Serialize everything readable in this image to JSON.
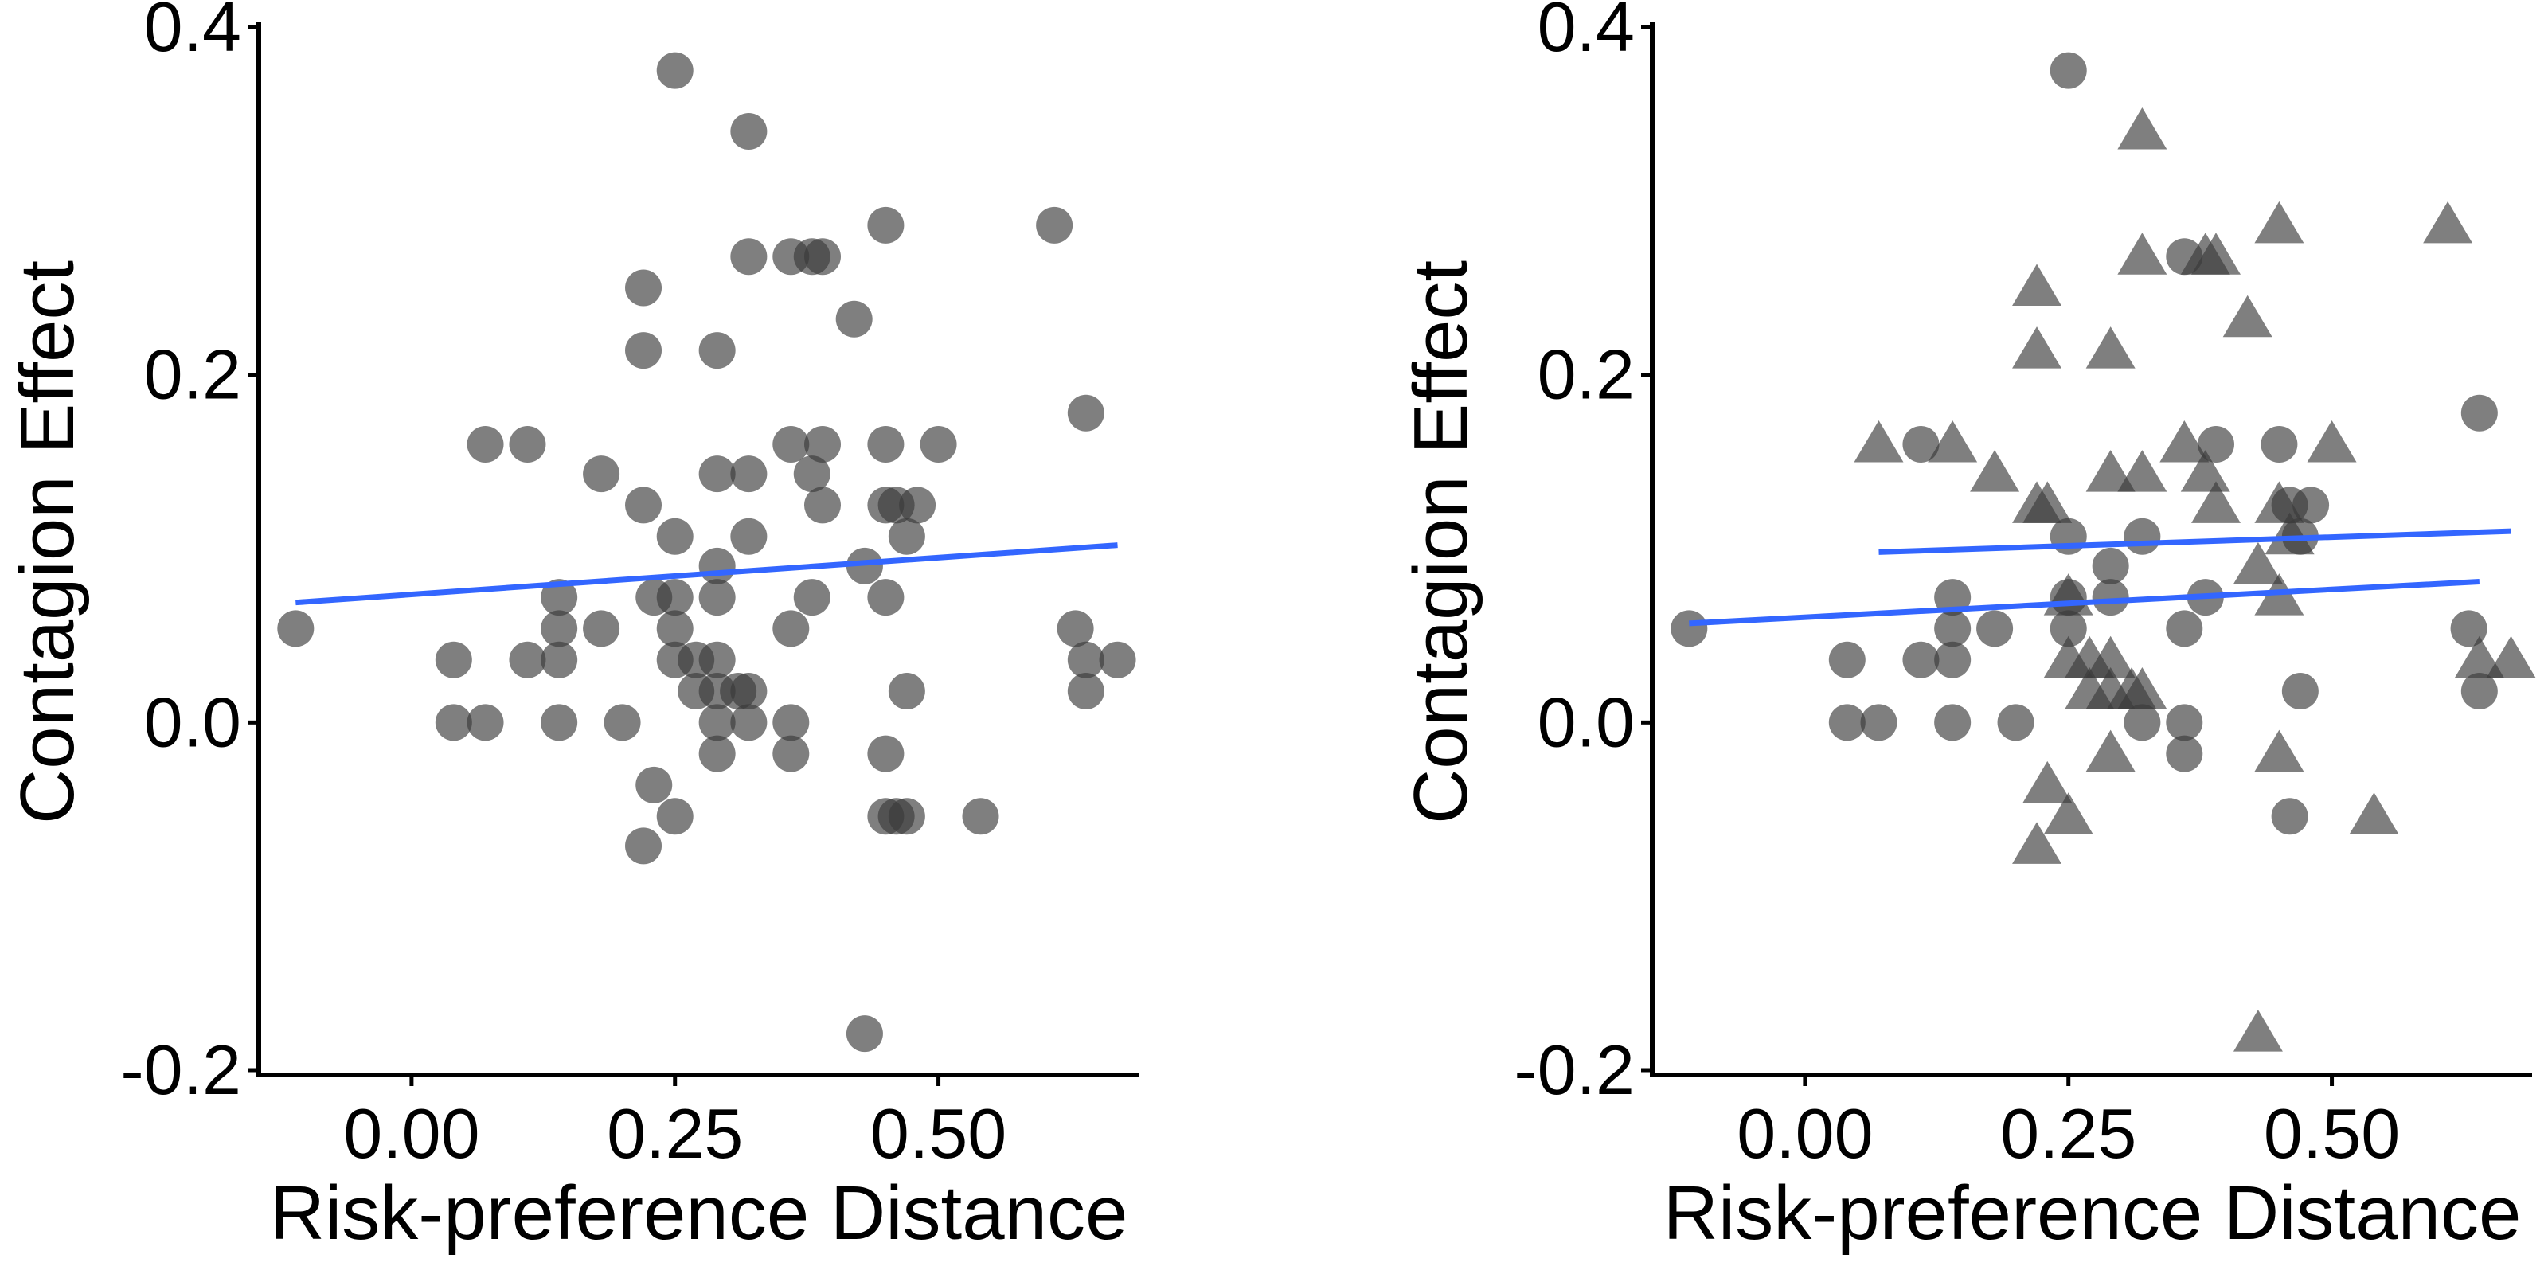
{
  "chart_data": [
    {
      "type": "scatter",
      "xlabel": "Risk-preference Distance",
      "ylabel": "Contagion Effect",
      "xlim": [
        -0.145,
        0.69
      ],
      "ylim": [
        -0.2,
        0.4
      ],
      "xticks": [
        0.0,
        0.25,
        0.5
      ],
      "xtick_labels": [
        "0.00",
        "0.25",
        "0.50"
      ],
      "yticks": [
        -0.2,
        0.0,
        0.2,
        0.4
      ],
      "ytick_labels": [
        "-0.2",
        "0.0",
        "0.2",
        "0.4"
      ],
      "grid": false,
      "series": [
        {
          "marker": "circle",
          "color": "#3a3a3a",
          "points": [
            [
              -0.11,
              0.054
            ],
            [
              0.04,
              0.036
            ],
            [
              0.04,
              0.0
            ],
            [
              0.07,
              0.0
            ],
            [
              0.07,
              0.16
            ],
            [
              0.11,
              0.16
            ],
            [
              0.11,
              0.036
            ],
            [
              0.14,
              0.036
            ],
            [
              0.14,
              0.054
            ],
            [
              0.14,
              0.072
            ],
            [
              0.14,
              0.0
            ],
            [
              0.18,
              0.054
            ],
            [
              0.18,
              0.143
            ],
            [
              0.2,
              0.0
            ],
            [
              0.22,
              0.25
            ],
            [
              0.22,
              0.214
            ],
            [
              0.22,
              0.125
            ],
            [
              0.22,
              -0.071
            ],
            [
              0.23,
              0.072
            ],
            [
              0.23,
              -0.036
            ],
            [
              0.25,
              0.375
            ],
            [
              0.25,
              0.107
            ],
            [
              0.25,
              0.072
            ],
            [
              0.25,
              0.054
            ],
            [
              0.25,
              0.036
            ],
            [
              0.25,
              -0.054
            ],
            [
              0.27,
              0.036
            ],
            [
              0.27,
              0.018
            ],
            [
              0.29,
              0.09
            ],
            [
              0.29,
              0.143
            ],
            [
              0.29,
              0.214
            ],
            [
              0.29,
              0.072
            ],
            [
              0.29,
              0.036
            ],
            [
              0.29,
              0.018
            ],
            [
              0.29,
              0.0
            ],
            [
              0.29,
              -0.018
            ],
            [
              0.31,
              0.018
            ],
            [
              0.32,
              0.34
            ],
            [
              0.32,
              0.268
            ],
            [
              0.32,
              0.143
            ],
            [
              0.32,
              0.107
            ],
            [
              0.32,
              0.018
            ],
            [
              0.32,
              0.0
            ],
            [
              0.36,
              0.268
            ],
            [
              0.36,
              0.16
            ],
            [
              0.36,
              0.054
            ],
            [
              0.36,
              0.0
            ],
            [
              0.36,
              -0.018
            ],
            [
              0.38,
              0.268
            ],
            [
              0.38,
              0.143
            ],
            [
              0.38,
              0.072
            ],
            [
              0.39,
              0.268
            ],
            [
              0.39,
              0.16
            ],
            [
              0.39,
              0.125
            ],
            [
              0.42,
              0.232
            ],
            [
              0.43,
              -0.179
            ],
            [
              0.43,
              0.09
            ],
            [
              0.45,
              0.286
            ],
            [
              0.45,
              0.16
            ],
            [
              0.45,
              0.125
            ],
            [
              0.45,
              0.072
            ],
            [
              0.45,
              -0.018
            ],
            [
              0.45,
              -0.054
            ],
            [
              0.46,
              0.125
            ],
            [
              0.46,
              -0.054
            ],
            [
              0.47,
              0.107
            ],
            [
              0.47,
              0.018
            ],
            [
              0.47,
              -0.054
            ],
            [
              0.48,
              0.125
            ],
            [
              0.5,
              0.16
            ],
            [
              0.54,
              -0.054
            ],
            [
              0.61,
              0.286
            ],
            [
              0.63,
              0.054
            ],
            [
              0.64,
              0.178
            ],
            [
              0.64,
              0.036
            ],
            [
              0.64,
              0.018
            ],
            [
              0.67,
              0.036
            ]
          ]
        }
      ],
      "fit_lines": [
        {
          "color": "#3366ff",
          "x": [
            -0.11,
            0.67
          ],
          "y": [
            0.069,
            0.102
          ]
        }
      ]
    },
    {
      "type": "scatter",
      "xlabel": "Risk-preference Distance",
      "ylabel": "Contagion Effect",
      "xlim": [
        -0.145,
        0.69
      ],
      "ylim": [
        -0.2,
        0.4
      ],
      "xticks": [
        0.0,
        0.25,
        0.5
      ],
      "xtick_labels": [
        "0.00",
        "0.25",
        "0.50"
      ],
      "yticks": [
        -0.2,
        0.0,
        0.2,
        0.4
      ],
      "ytick_labels": [
        "-0.2",
        "0.0",
        "0.2",
        "0.4"
      ],
      "grid": false,
      "series": [
        {
          "marker": "circle",
          "color": "#3a3a3a",
          "points": [
            [
              -0.11,
              0.054
            ],
            [
              0.04,
              0.036
            ],
            [
              0.04,
              0.0
            ],
            [
              0.07,
              0.0
            ],
            [
              0.11,
              0.16
            ],
            [
              0.11,
              0.036
            ],
            [
              0.14,
              0.072
            ],
            [
              0.14,
              0.054
            ],
            [
              0.14,
              0.036
            ],
            [
              0.14,
              0.0
            ],
            [
              0.18,
              0.054
            ],
            [
              0.2,
              0.0
            ],
            [
              0.25,
              0.375
            ],
            [
              0.25,
              0.107
            ],
            [
              0.25,
              0.072
            ],
            [
              0.25,
              0.054
            ],
            [
              0.29,
              0.09
            ],
            [
              0.29,
              0.072
            ],
            [
              0.32,
              0.107
            ],
            [
              0.32,
              0.0
            ],
            [
              0.36,
              0.268
            ],
            [
              0.36,
              0.054
            ],
            [
              0.36,
              0.0
            ],
            [
              0.36,
              -0.018
            ],
            [
              0.38,
              0.072
            ],
            [
              0.39,
              0.16
            ],
            [
              0.45,
              0.16
            ],
            [
              0.46,
              0.125
            ],
            [
              0.46,
              -0.054
            ],
            [
              0.47,
              0.107
            ],
            [
              0.47,
              0.018
            ],
            [
              0.48,
              0.125
            ],
            [
              0.63,
              0.054
            ],
            [
              0.64,
              0.178
            ],
            [
              0.64,
              0.018
            ]
          ]
        },
        {
          "marker": "triangle",
          "color": "#3a3a3a",
          "points": [
            [
              0.07,
              0.16
            ],
            [
              0.14,
              0.16
            ],
            [
              0.18,
              0.143
            ],
            [
              0.22,
              0.25
            ],
            [
              0.22,
              0.214
            ],
            [
              0.22,
              0.125
            ],
            [
              0.22,
              -0.071
            ],
            [
              0.23,
              0.125
            ],
            [
              0.23,
              -0.036
            ],
            [
              0.25,
              0.072
            ],
            [
              0.25,
              -0.054
            ],
            [
              0.25,
              0.036
            ],
            [
              0.27,
              0.036
            ],
            [
              0.27,
              0.018
            ],
            [
              0.29,
              0.214
            ],
            [
              0.29,
              0.143
            ],
            [
              0.29,
              0.036
            ],
            [
              0.29,
              0.018
            ],
            [
              0.29,
              -0.018
            ],
            [
              0.31,
              0.018
            ],
            [
              0.32,
              0.34
            ],
            [
              0.32,
              0.268
            ],
            [
              0.32,
              0.143
            ],
            [
              0.32,
              0.018
            ],
            [
              0.36,
              0.16
            ],
            [
              0.38,
              0.268
            ],
            [
              0.38,
              0.143
            ],
            [
              0.39,
              0.268
            ],
            [
              0.39,
              0.125
            ],
            [
              0.42,
              0.232
            ],
            [
              0.43,
              -0.179
            ],
            [
              0.43,
              0.09
            ],
            [
              0.45,
              0.286
            ],
            [
              0.45,
              0.125
            ],
            [
              0.45,
              0.072
            ],
            [
              0.45,
              -0.018
            ],
            [
              0.46,
              0.107
            ],
            [
              0.5,
              0.16
            ],
            [
              0.54,
              -0.054
            ],
            [
              0.61,
              0.286
            ],
            [
              0.64,
              0.036
            ],
            [
              0.67,
              0.036
            ]
          ]
        }
      ],
      "fit_lines": [
        {
          "color": "#3366ff",
          "x": [
            -0.11,
            0.64
          ],
          "y": [
            0.057,
            0.081
          ]
        },
        {
          "color": "#3366ff",
          "x": [
            0.07,
            0.67
          ],
          "y": [
            0.098,
            0.11
          ]
        }
      ]
    }
  ]
}
